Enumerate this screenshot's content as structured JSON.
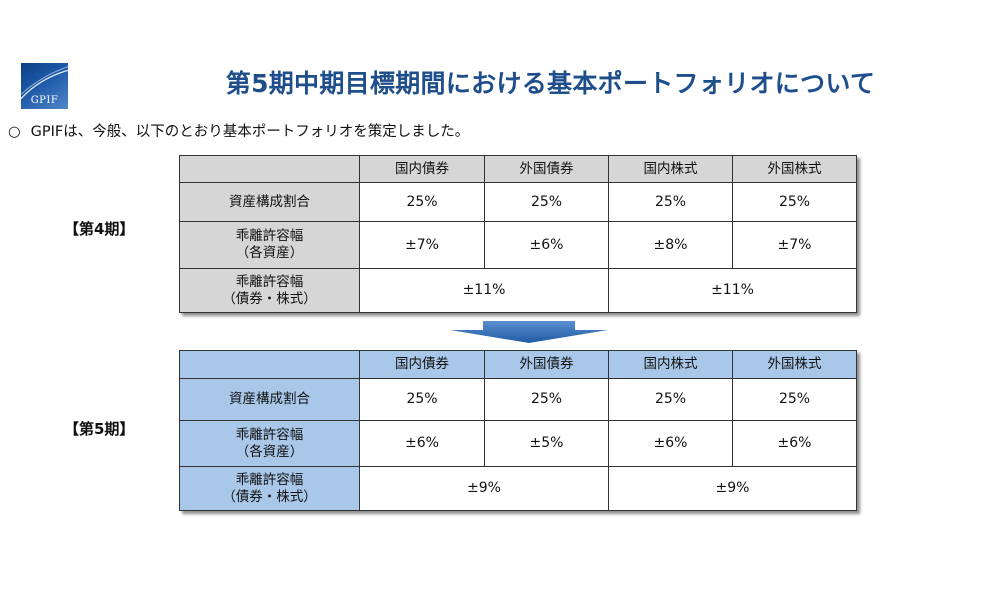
{
  "logo": {
    "text": "GPIF"
  },
  "title": "第5期中期目標期間における基本ポートフォリオについて",
  "intro": {
    "bullet": "○",
    "text": "GPIFは、今般、以下のとおり基本ポートフォリオを策定しました。"
  },
  "columns": [
    "国内債券",
    "外国債券",
    "国内株式",
    "外国株式"
  ],
  "period4": {
    "label": "【第4期】",
    "allocation": {
      "label": "資産構成割合",
      "values": [
        "25%",
        "25%",
        "25%",
        "25%"
      ]
    },
    "deviation_each": {
      "label_line1": "乖離許容幅",
      "label_line2": "（各資産）",
      "values": [
        "±7%",
        "±6%",
        "±8%",
        "±7%"
      ]
    },
    "deviation_group": {
      "label_line1": "乖離許容幅",
      "label_line2": "（債券・株式）",
      "bonds": "±11%",
      "stocks": "±11%"
    }
  },
  "period5": {
    "label": "【第5期】",
    "allocation": {
      "label": "資産構成割合",
      "values": [
        "25%",
        "25%",
        "25%",
        "25%"
      ]
    },
    "deviation_each": {
      "label_line1": "乖離許容幅",
      "label_line2": "（各資産）",
      "values": [
        "±6%",
        "±5%",
        "±6%",
        "±6%"
      ]
    },
    "deviation_group": {
      "label_line1": "乖離許容幅",
      "label_line2": "（債券・株式）",
      "bonds": "±9%",
      "stocks": "±9%"
    }
  },
  "colors": {
    "title": "#1f4e8c",
    "header_gray": "#d6d6d6",
    "header_blue": "#a9c7e8",
    "arrow": "#2e6fb4"
  }
}
